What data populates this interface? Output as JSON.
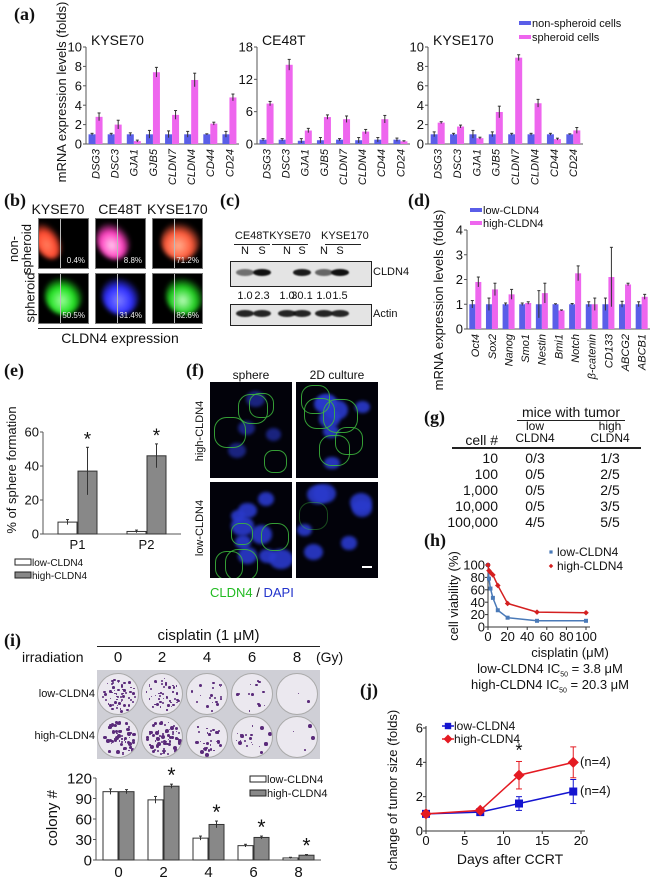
{
  "panel_labels": {
    "a": "(a)",
    "b": "(b)",
    "c": "(c)",
    "d": "(d)",
    "e": "(e)",
    "f": "(f)",
    "g": "(g)",
    "h": "(h)",
    "i": "(i)",
    "j": "(j)"
  },
  "colors": {
    "non_spheroid": "#5a5ee8",
    "spheroid": "#ee66ee",
    "low_bar": "#ffffff",
    "high_bar": "#888888",
    "h_low": "#4a7ab8",
    "h_high": "#d42020",
    "j_low": "#1414d0",
    "j_high": "#e41a22"
  },
  "flow": {
    "columns": [
      "KYSE70",
      "CE48T",
      "KYSE170"
    ],
    "row_labels": {
      "non_spheroid_1": "non-",
      "non_spheroid_2": "spheroid",
      "spheroid": "spheroid"
    },
    "non_spheroid_percent": [
      "0.4%",
      "8.8%",
      "71.2%"
    ],
    "spheroid_percent": [
      "50.5%",
      "31.4%",
      "82.6%"
    ],
    "xlabel": "CLDN4 expression"
  },
  "blot": {
    "cell_lines": [
      "CE48T",
      "KYSE70",
      "KYSE170"
    ],
    "lanes": [
      "N",
      "S",
      "N",
      "S",
      "N",
      "S"
    ],
    "quantification": [
      "1.0",
      "2.3",
      "1.0",
      "30.1",
      "1.0",
      "1.5"
    ],
    "proteins": [
      "CLDN4",
      "Actin"
    ]
  },
  "micro": {
    "columns": [
      "sphere",
      "2D culture"
    ],
    "rows": [
      "high-CLDN4",
      "low-CLDN4"
    ],
    "stain_cldn4": "CLDN4",
    "stain_sep": " / ",
    "stain_dapi": "DAPI",
    "cldn4_color": "#22bb22",
    "dapi_color": "#2233cc"
  },
  "table_g": {
    "group_header": "mice with tumor",
    "col_cell": "cell #",
    "col_low_1": "low",
    "col_low_2": "CLDN4",
    "col_high_1": "high",
    "col_high_2": "CLDN4",
    "rows": [
      {
        "cells": "10",
        "low": "0/3",
        "high": "1/3"
      },
      {
        "cells": "100",
        "low": "0/5",
        "high": "2/5"
      },
      {
        "cells": "1,000",
        "low": "0/5",
        "high": "2/5"
      },
      {
        "cells": "10,000",
        "low": "0/5",
        "high": "3/5"
      },
      {
        "cells": "100,000",
        "low": "4/5",
        "high": "5/5"
      }
    ]
  },
  "ic50": {
    "low": {
      "pre": "low-CLDN4 IC",
      "sub": "50",
      "post": " = 3.8 μM"
    },
    "high": {
      "pre": "high-CLDN4 IC",
      "sub": "50",
      "post": " = 20.3 μM"
    }
  },
  "colony_header": {
    "treatment": "cisplatin (1 μM)",
    "irradiation": "irradiation",
    "doses": [
      "0",
      "2",
      "4",
      "6",
      "8"
    ],
    "unit": "(Gy)",
    "rows": [
      "low-CLDN4",
      "high-CLDN4"
    ]
  },
  "n_labels": [
    "(n=4)",
    "(n=4)"
  ],
  "chart_data": [
    {
      "id": "a1",
      "type": "bar",
      "title": "KYSE70",
      "ylabel": "mRNA expression levels (folds)",
      "ylim": [
        0,
        10
      ],
      "yticks": [
        0,
        2,
        4,
        6,
        8,
        10
      ],
      "categories": [
        "DSG3",
        "DSC3",
        "GJA1",
        "GJB5",
        "CLDN7",
        "CLDN4",
        "CD44",
        "CD24"
      ],
      "series": [
        {
          "name": "non-spheroid cells",
          "values": [
            1,
            1,
            1,
            1,
            1,
            1,
            1,
            1
          ],
          "errors": [
            0.1,
            0.1,
            0.15,
            0.4,
            0.35,
            0.3,
            0.05,
            0.3
          ]
        },
        {
          "name": "spheroid cells",
          "values": [
            2.8,
            2.0,
            0.3,
            7.4,
            3.0,
            6.6,
            2.1,
            4.8
          ],
          "errors": [
            0.4,
            0.45,
            0.1,
            0.5,
            0.45,
            0.7,
            0.15,
            0.35
          ]
        }
      ]
    },
    {
      "id": "a2",
      "type": "bar",
      "title": "CE48T",
      "ylim": [
        0,
        18
      ],
      "yticks": [
        0,
        6,
        12,
        18
      ],
      "categories": [
        "DSG3",
        "DSC3",
        "GJA1",
        "GJB5",
        "CLDN7",
        "CLDN4",
        "CD44",
        "CD24"
      ],
      "series": [
        {
          "name": "non-spheroid cells",
          "values": [
            0.8,
            0.8,
            0.6,
            0.7,
            0.8,
            0.7,
            0.8,
            0.8
          ],
          "errors": [
            0.2,
            0.2,
            0.4,
            0.5,
            0.2,
            0.5,
            0.4,
            0.3
          ]
        },
        {
          "name": "spheroid cells",
          "values": [
            7.5,
            14.7,
            2.5,
            5.0,
            4.6,
            2.3,
            4.6,
            0.5
          ],
          "errors": [
            0.4,
            1.0,
            0.4,
            0.4,
            0.6,
            0.4,
            0.7,
            0.1
          ]
        }
      ]
    },
    {
      "id": "a3",
      "type": "bar",
      "title": "KYSE170",
      "ylim": [
        0,
        10
      ],
      "yticks": [
        0,
        2,
        4,
        6,
        8,
        10
      ],
      "legend": "top-right",
      "categories": [
        "DSG3",
        "DSC3",
        "GJA1",
        "GJB5",
        "CLDN7",
        "CLDN4",
        "CD44",
        "CD24"
      ],
      "series": [
        {
          "name": "non-spheroid cells",
          "values": [
            1,
            1,
            1,
            1,
            1,
            1,
            1,
            1
          ],
          "errors": [
            0.25,
            0.1,
            0.4,
            0.25,
            0.1,
            0.1,
            0.1,
            0.05
          ]
        },
        {
          "name": "spheroid cells",
          "values": [
            2.2,
            1.8,
            0.6,
            3.3,
            8.9,
            4.2,
            0.5,
            1.4
          ],
          "errors": [
            0.1,
            0.15,
            0.1,
            0.6,
            0.3,
            0.4,
            0.1,
            0.3
          ]
        }
      ]
    },
    {
      "id": "d",
      "type": "bar",
      "ylabel": "mRNA expression levels (folds)",
      "ylim": [
        0,
        4
      ],
      "yticks": [
        0,
        1,
        2,
        3,
        4
      ],
      "legend": "top-left",
      "categories": [
        "Oct4",
        "Sox2",
        "Nanog",
        "Smo1",
        "Nestin",
        "Bmi1",
        "Notch",
        "β-catenin",
        "CD133",
        "ABCG2",
        "ABCB1"
      ],
      "series": [
        {
          "name": "low-CLDN4",
          "values": [
            1,
            1,
            1,
            1,
            1,
            1,
            1,
            1,
            1,
            1,
            1
          ],
          "errors": [
            0.15,
            0.25,
            0.05,
            0.05,
            0.55,
            0.02,
            0.03,
            0.1,
            0.25,
            0.12,
            0.1
          ]
        },
        {
          "name": "high-CLDN4",
          "values": [
            1.9,
            1.6,
            1.4,
            1.05,
            1.45,
            0.75,
            2.25,
            1.0,
            2.1,
            1.8,
            1.3
          ],
          "errors": [
            0.2,
            0.25,
            0.2,
            0.05,
            0.4,
            0.02,
            0.3,
            0.25,
            1.2,
            0.05,
            0.1
          ]
        }
      ]
    },
    {
      "id": "e",
      "type": "bar",
      "ylabel": "% of sphere formation",
      "ylim": [
        0,
        60
      ],
      "yticks": [
        0,
        20,
        40,
        60
      ],
      "legend": "bottom",
      "categories": [
        "P1",
        "P2"
      ],
      "significant": [
        true,
        true
      ],
      "series": [
        {
          "name": "low-CLDN4",
          "values": [
            7,
            1.5
          ],
          "errors": [
            1.5,
            0.8
          ]
        },
        {
          "name": "high-CLDN4",
          "values": [
            37,
            46
          ],
          "errors": [
            14,
            7
          ]
        }
      ]
    },
    {
      "id": "h",
      "type": "line",
      "ylabel": "cell viability (%)",
      "xlabel": "cisplatin (μM)",
      "xlim": [
        0,
        100
      ],
      "ylim": [
        0,
        100
      ],
      "xticks": [
        0,
        20,
        40,
        60,
        80,
        100
      ],
      "yticks": [
        0,
        20,
        40,
        60,
        80,
        100
      ],
      "legend": "top-right",
      "series": [
        {
          "name": "low-CLDN4",
          "x": [
            0,
            1,
            2.5,
            5,
            10,
            20,
            50,
            100
          ],
          "y": [
            100,
            78,
            62,
            47,
            27,
            15,
            10,
            10
          ]
        },
        {
          "name": "high-CLDN4",
          "x": [
            0,
            1,
            2.5,
            5,
            10,
            20,
            50,
            100
          ],
          "y": [
            100,
            91,
            88,
            84,
            67,
            38,
            24,
            23
          ]
        }
      ]
    },
    {
      "id": "i",
      "type": "bar",
      "ylabel": "colony #",
      "ylim": [
        0,
        120
      ],
      "yticks": [
        0,
        30,
        60,
        90,
        120
      ],
      "legend": "top-right",
      "categories": [
        "0",
        "2",
        "4",
        "6",
        "8"
      ],
      "significant": [
        false,
        true,
        true,
        true,
        true
      ],
      "series": [
        {
          "name": "low-CLDN4",
          "values": [
            100,
            88,
            32,
            21,
            3
          ],
          "errors": [
            4,
            5,
            3,
            2,
            1
          ]
        },
        {
          "name": "high-CLDN4",
          "values": [
            100,
            108,
            52,
            33,
            7
          ],
          "errors": [
            3,
            3,
            5,
            2,
            1
          ]
        }
      ]
    },
    {
      "id": "j",
      "type": "line",
      "ylabel": "change of tumor size (folds)",
      "xlabel": "Days after CCRT",
      "xlim": [
        0,
        20
      ],
      "ylim": [
        0,
        6
      ],
      "xticks": [
        0,
        5,
        10,
        15,
        20
      ],
      "yticks": [
        0,
        2,
        4,
        6
      ],
      "legend": "top-left",
      "significant_x": [
        12
      ],
      "series": [
        {
          "name": "low-CLDN4",
          "x": [
            0,
            7,
            12,
            19
          ],
          "y": [
            1,
            1.1,
            1.6,
            2.3
          ],
          "errors": [
            0.1,
            0.1,
            0.4,
            0.7
          ]
        },
        {
          "name": "high-CLDN4",
          "x": [
            0,
            7,
            12,
            19
          ],
          "y": [
            1,
            1.2,
            3.25,
            4.0
          ],
          "errors": [
            0.1,
            0.1,
            0.8,
            0.9
          ]
        }
      ]
    }
  ]
}
